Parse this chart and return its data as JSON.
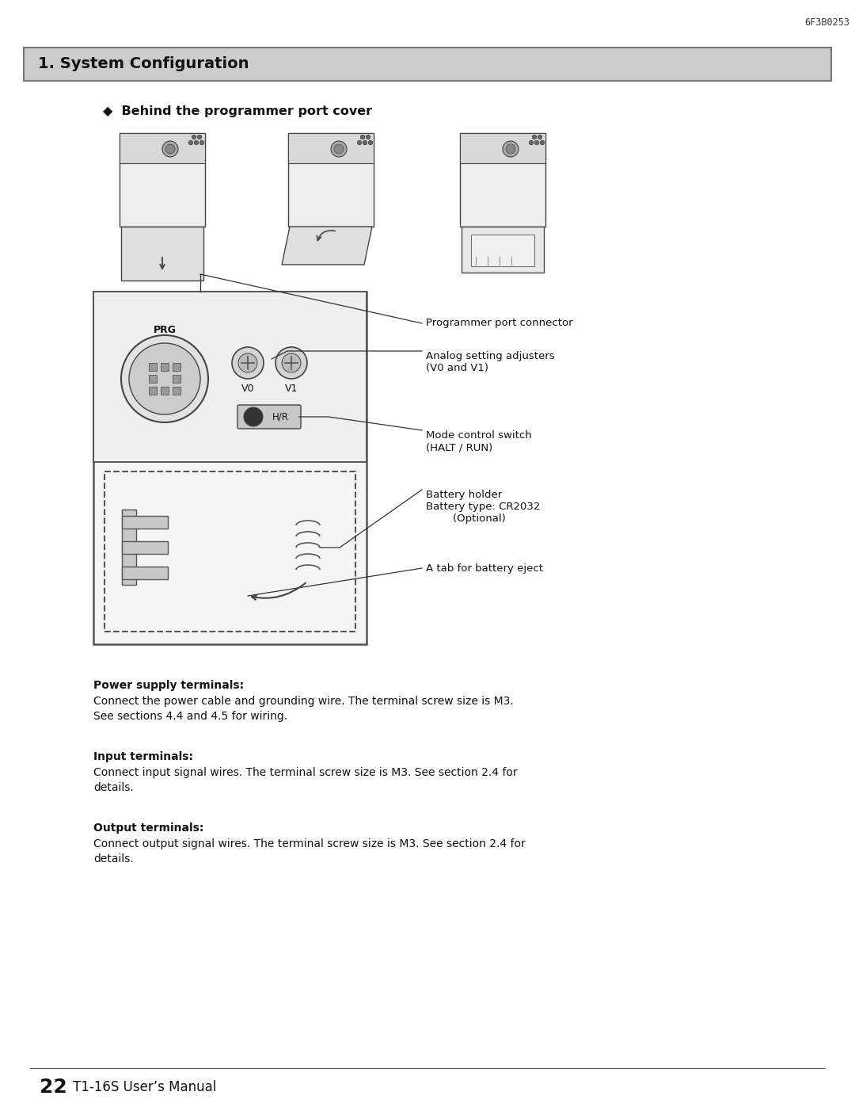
{
  "bg_color": "#ffffff",
  "header_ref": "6F3B0253",
  "section_title": "1. System Configuration",
  "section_bg": "#cccccc",
  "bullet_heading": "◆  Behind the programmer port cover",
  "label_prg": "Programmer port connector",
  "label_analog": "Analog setting adjusters\n(V0 and V1)",
  "label_mode": "Mode control switch\n(HALT / RUN)",
  "label_battery": "Battery holder\nBattery type: CR2032\n        (Optional)",
  "label_tab": "A tab for battery eject",
  "power_heading": "Power supply terminals:",
  "power_body": "Connect the power cable and grounding wire. The terminal screw size is M3.\nSee sections 4.4 and 4.5 for wiring.",
  "input_heading": "Input terminals:",
  "input_body": "Connect input signal wires. The terminal screw size is M3. See section 2.4 for\ndetails.",
  "output_heading": "Output terminals:",
  "output_body": "Connect output signal wires. The terminal screw size is M3. See section 2.4 for\ndetails.",
  "footer_page": "22",
  "footer_manual": "T1-16S User’s Manual"
}
